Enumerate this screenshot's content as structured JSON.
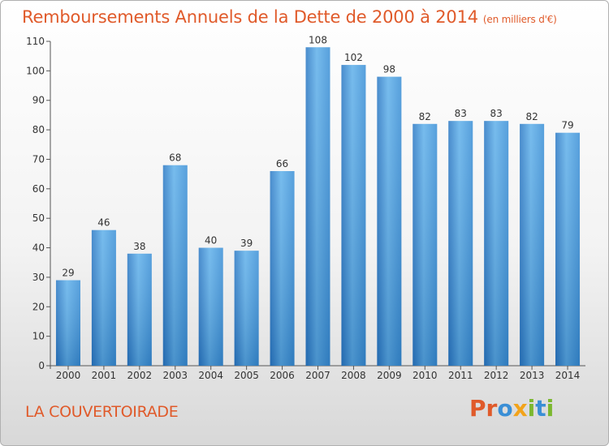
{
  "chart_data": {
    "type": "bar",
    "title": "Remboursements Annuels de la Dette de 2000 à 2014",
    "unit": "(en milliers d'€)",
    "categories": [
      "2000",
      "2001",
      "2002",
      "2003",
      "2004",
      "2005",
      "2006",
      "2007",
      "2008",
      "2009",
      "2010",
      "2011",
      "2012",
      "2013",
      "2014"
    ],
    "values": [
      29,
      46,
      38,
      68,
      40,
      39,
      66,
      108,
      102,
      98,
      82,
      83,
      83,
      82,
      79
    ],
    "ylim": [
      0,
      110
    ],
    "yticks": [
      0,
      10,
      20,
      30,
      40,
      50,
      60,
      70,
      80,
      90,
      100,
      110
    ],
    "grid": false,
    "bar_color": "#3a8fd6"
  },
  "footer": {
    "location": "LA COUVERTOIRADE",
    "logo": [
      "P",
      "r",
      "o",
      "x",
      "i",
      "t",
      "i"
    ]
  },
  "colors": {
    "accent": "#e05a2a",
    "logo": [
      "#e05a2a",
      "#e05a2a",
      "#3a8fd6",
      "#f2a31a",
      "#7cb82f",
      "#3a8fd6",
      "#7cb82f"
    ]
  }
}
